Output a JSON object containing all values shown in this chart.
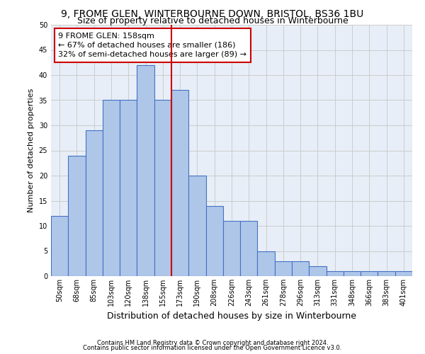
{
  "title1": "9, FROME GLEN, WINTERBOURNE DOWN, BRISTOL, BS36 1BU",
  "title2": "Size of property relative to detached houses in Winterbourne",
  "xlabel": "Distribution of detached houses by size in Winterbourne",
  "ylabel": "Number of detached properties",
  "categories": [
    "50sqm",
    "68sqm",
    "85sqm",
    "103sqm",
    "120sqm",
    "138sqm",
    "155sqm",
    "173sqm",
    "190sqm",
    "208sqm",
    "226sqm",
    "243sqm",
    "261sqm",
    "278sqm",
    "296sqm",
    "313sqm",
    "331sqm",
    "348sqm",
    "366sqm",
    "383sqm",
    "401sqm"
  ],
  "values": [
    12,
    24,
    29,
    35,
    35,
    42,
    35,
    37,
    20,
    14,
    11,
    11,
    5,
    3,
    3,
    2,
    1,
    1,
    1,
    1,
    1
  ],
  "bar_color": "#aec6e8",
  "bar_edge_color": "#4472c4",
  "vline_x": 6.5,
  "vline_color": "#cc0000",
  "annotation_text": "9 FROME GLEN: 158sqm\n← 67% of detached houses are smaller (186)\n32% of semi-detached houses are larger (89) →",
  "annotation_box_edgecolor": "#cc0000",
  "annotation_box_facecolor": "#ffffff",
  "footnote1": "Contains HM Land Registry data © Crown copyright and database right 2024.",
  "footnote2": "Contains public sector information licensed under the Open Government Licence v3.0.",
  "ylim": [
    0,
    50
  ],
  "grid_color": "#cccccc",
  "bg_color": "#e8eef7",
  "title_fontsize": 10,
  "subtitle_fontsize": 9,
  "ylabel_fontsize": 8,
  "xlabel_fontsize": 9,
  "tick_fontsize": 7,
  "annot_fontsize": 8,
  "footnote_fontsize": 6
}
